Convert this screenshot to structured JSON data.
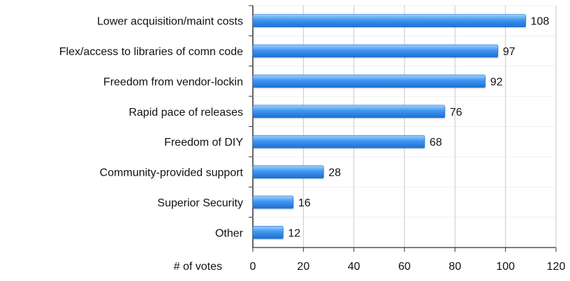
{
  "chart_data": {
    "type": "bar",
    "orientation": "horizontal",
    "categories": [
      "Lower acquisition/maint costs",
      "Flex/access to libraries of comn code",
      "Freedom from vendor-lockin",
      "Rapid pace of releases",
      "Freedom of DIY",
      "Community-provided support",
      "Superior Security",
      "Other"
    ],
    "values": [
      108,
      97,
      92,
      76,
      68,
      28,
      16,
      12
    ],
    "data_labels": [
      "108",
      "97",
      "92",
      "76",
      "68",
      "28",
      "16",
      "12"
    ],
    "xlabel": "# of votes",
    "xlim": [
      0,
      120
    ],
    "x_ticks": [
      0,
      20,
      40,
      60,
      80,
      100,
      120
    ],
    "x_tick_labels": [
      "0",
      "20",
      "40",
      "60",
      "80",
      "100",
      "120"
    ],
    "grid": "vertical",
    "legend": "none",
    "colors": {
      "bar_dark": "#1e6fd1",
      "bar_mid": "#3f96f0",
      "bar_light": "#9fd1ff",
      "grid": "#c9c9c9",
      "axis": "#333333",
      "text": "#111111"
    }
  }
}
